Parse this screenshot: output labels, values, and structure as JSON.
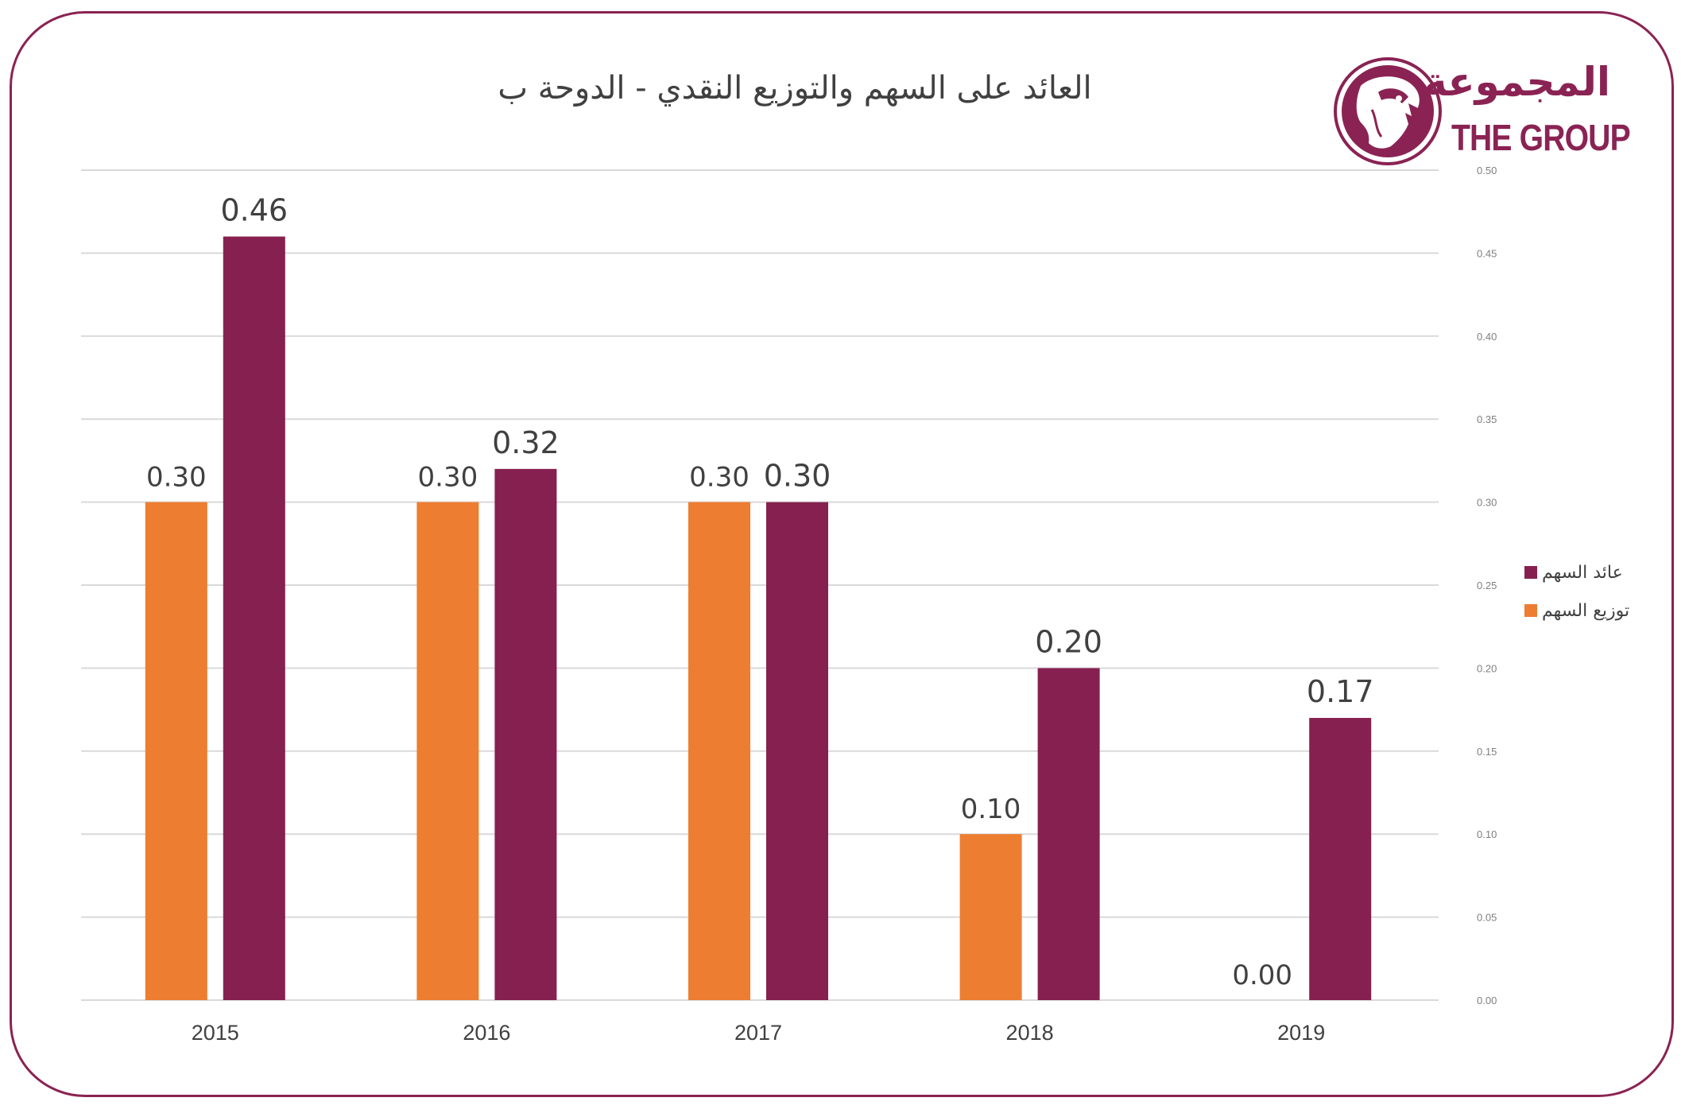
{
  "title": "العائد على السهم والتوزيع النقدي - الدوحة ب",
  "logo": {
    "arabic": "المجموعة",
    "english": "THE GROUP",
    "icon": "falcon-head-icon"
  },
  "colors": {
    "eps": "#862050",
    "dividend": "#ED7D31",
    "frame": "#8a2353",
    "grid": "#d9d9d9",
    "text": "#404040"
  },
  "chart_data": {
    "type": "bar",
    "categories": [
      "2015",
      "2016",
      "2017",
      "2018",
      "2019"
    ],
    "series": [
      {
        "name": "توزيع السهم",
        "values": [
          0.3,
          0.3,
          0.3,
          0.1,
          0.0
        ],
        "labels": [
          "0.30",
          "0.30",
          "0.30",
          "0.10",
          "0.00"
        ],
        "color": "#ED7D31"
      },
      {
        "name": "عائد السهم",
        "values": [
          0.46,
          0.32,
          0.3,
          0.2,
          0.17
        ],
        "labels": [
          "0.46",
          "0.32",
          "0.30",
          "0.20",
          "0.17"
        ],
        "color": "#862050"
      }
    ],
    "ylim": [
      0,
      0.5
    ],
    "yticks": [
      "0.00",
      "0.05",
      "0.10",
      "0.15",
      "0.20",
      "0.25",
      "0.30",
      "0.35",
      "0.40",
      "0.45",
      "0.50"
    ],
    "y_axis_side": "right",
    "grid": true,
    "legend_position": "right"
  }
}
